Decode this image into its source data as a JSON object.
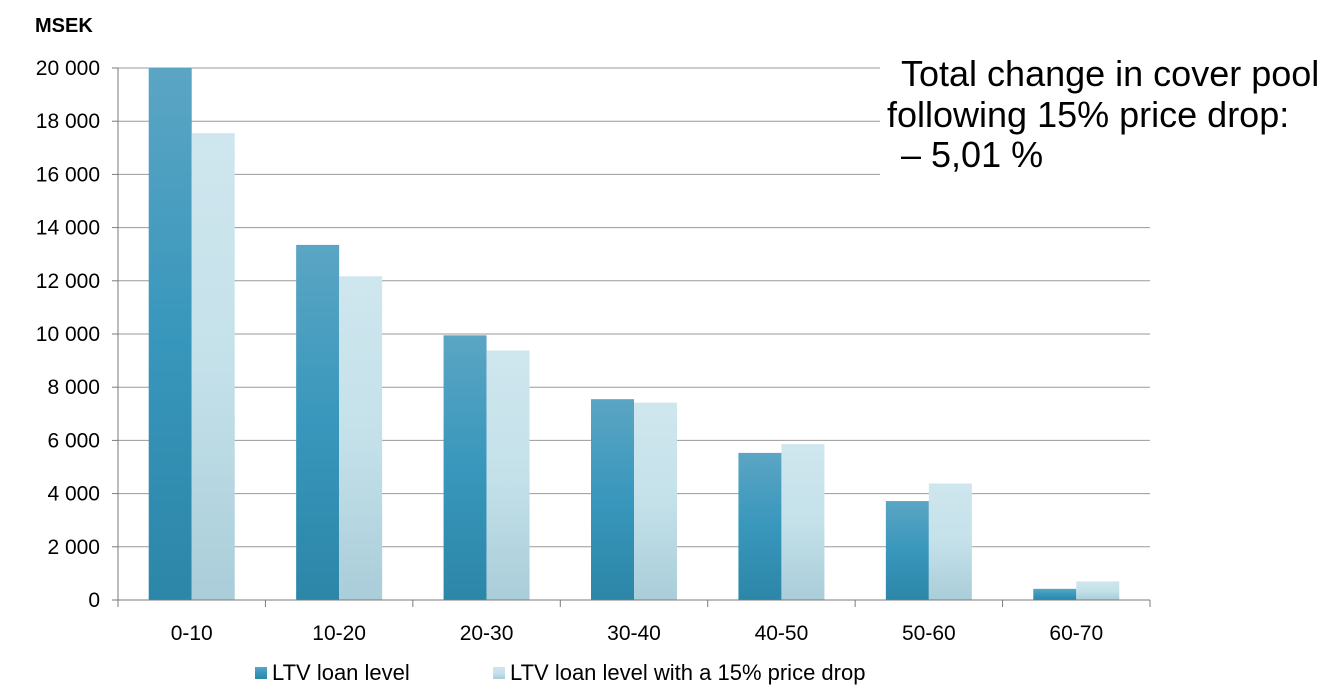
{
  "chart_data": {
    "type": "bar",
    "ylabel": "MSEK",
    "categories": [
      "0-10",
      "10-20",
      "20-30",
      "30-40",
      "40-50",
      "50-60",
      "60-70"
    ],
    "series": [
      {
        "name": "LTV loan level",
        "values": [
          20000,
          13350,
          9950,
          7550,
          5530,
          3720,
          420
        ],
        "color": "#3590b2"
      },
      {
        "name": "LTV loan level with a 15% price drop",
        "values": [
          17550,
          12170,
          9380,
          7420,
          5860,
          4380,
          700
        ],
        "color": "#c3dfe8"
      }
    ],
    "ylim": [
      0,
      20000
    ],
    "yticks": [
      0,
      2000,
      4000,
      6000,
      8000,
      10000,
      12000,
      14000,
      16000,
      18000,
      20000
    ],
    "ytick_labels": [
      "0",
      "2 000",
      "4 000",
      "6 000",
      "8 000",
      "10 000",
      "12 000",
      "14 000",
      "16 000",
      "18 000",
      "20 000"
    ],
    "grid": true,
    "legend_position": "bottom",
    "annotation": [
      "Total change in cover pool",
      "following 15% price drop:",
      "– 5,01 %"
    ]
  }
}
